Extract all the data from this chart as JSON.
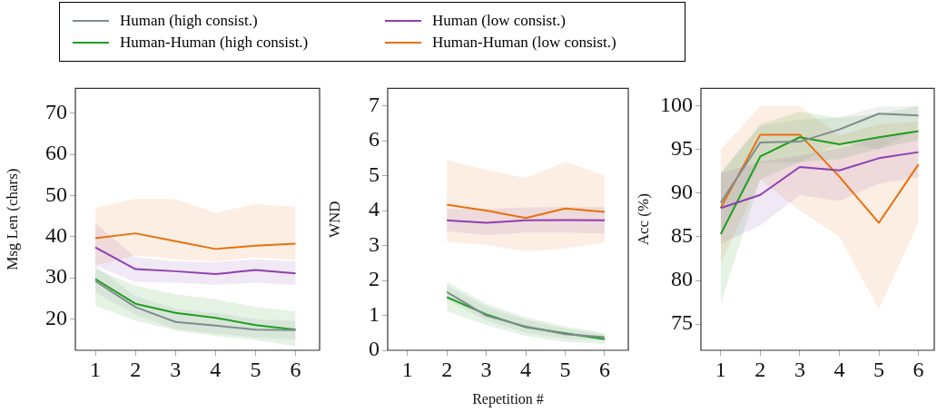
{
  "chart_data": [
    {
      "type": "line",
      "ylabel": "Msg Len (chars)",
      "x": [
        1,
        2,
        3,
        4,
        5,
        6
      ],
      "xlim": [
        0.5,
        6.6
      ],
      "xticks": [
        1,
        2,
        3,
        4,
        5,
        6
      ],
      "ylim": [
        12.4,
        76
      ],
      "yticks": [
        20,
        30,
        40,
        50,
        60,
        70
      ],
      "legend": "top",
      "grid": false,
      "marker": "none",
      "line_style": "solid",
      "series": [
        {
          "name": "Human (high consist.)",
          "color": "#7f8c8d",
          "values": [
            29.2,
            22.9,
            19.3,
            18.4,
            17.4,
            17.3
          ],
          "lower": [
            26.5,
            21,
            17.5,
            16.5,
            15.5,
            15
          ],
          "upper": [
            33,
            25.5,
            22.5,
            21.5,
            20,
            19.5
          ]
        },
        {
          "name": "Human (low consist.)",
          "color": "#8e3fb0",
          "values": [
            37.4,
            32.1,
            31.6,
            30.9,
            31.9,
            31.1
          ],
          "lower": [
            33,
            29,
            28.8,
            28.3,
            28.8,
            28.2
          ],
          "upper": [
            43.3,
            35,
            34,
            33.8,
            34.5,
            34
          ]
        },
        {
          "name": "Human-Human (high consist.)",
          "color": "#1f9e1f",
          "values": [
            29.7,
            23.7,
            21.5,
            20.3,
            18.5,
            17.4
          ],
          "lower": [
            23.2,
            19.6,
            17.2,
            15.9,
            14.9,
            13.4
          ],
          "upper": [
            32.2,
            28.1,
            26,
            24.8,
            22.9,
            21.8
          ]
        },
        {
          "name": "Human-Human (low consist.)",
          "color": "#e8700d",
          "values": [
            39.6,
            40.8,
            38.9,
            37,
            37.8,
            38.3
          ],
          "lower": [
            33,
            35.5,
            34.5,
            34,
            35,
            34.3
          ],
          "upper": [
            47,
            49.2,
            49.1,
            45.8,
            47.9,
            47.3
          ]
        }
      ]
    },
    {
      "type": "line",
      "ylabel": "WND",
      "xlabel": "Repetition #",
      "x": [
        2,
        3,
        4,
        5,
        6
      ],
      "xlim": [
        0.5,
        6.6
      ],
      "xticks": [
        1,
        2,
        3,
        4,
        5,
        6
      ],
      "ylim": [
        0,
        7.5
      ],
      "yticks": [
        0,
        1,
        2,
        3,
        4,
        5,
        6,
        7
      ],
      "grid": false,
      "marker": "none",
      "line_style": "solid",
      "series": [
        {
          "color": "#7f8c8d",
          "values": [
            1.67,
            0.99,
            0.68,
            0.46,
            0.38
          ],
          "lower": [
            1.45,
            0.85,
            0.5,
            0.33,
            0.28
          ],
          "upper": [
            1.85,
            1.25,
            0.88,
            0.62,
            0.45
          ]
        },
        {
          "color": "#8e3fb0",
          "values": [
            3.72,
            3.65,
            3.72,
            3.73,
            3.72
          ],
          "lower": [
            3.41,
            3.3,
            3.37,
            3.37,
            3.34
          ],
          "upper": [
            4.05,
            4.05,
            4.09,
            4.1,
            4.1
          ]
        },
        {
          "color": "#1f9e1f",
          "values": [
            1.52,
            1.03,
            0.66,
            0.49,
            0.32
          ],
          "lower": [
            1.13,
            0.72,
            0.41,
            0.24,
            0.18
          ],
          "upper": [
            1.96,
            1.34,
            0.94,
            0.68,
            0.5
          ]
        },
        {
          "color": "#e8700d",
          "values": [
            4.17,
            4,
            3.79,
            4.06,
            3.96
          ],
          "lower": [
            3.1,
            3.02,
            2.83,
            2.92,
            3.08
          ],
          "upper": [
            5.44,
            5.17,
            4.93,
            5.4,
            5
          ]
        }
      ]
    },
    {
      "type": "line",
      "ylabel": "Acc (%)",
      "x": [
        1,
        2,
        3,
        4,
        5,
        6
      ],
      "xlim": [
        0.5,
        6.4
      ],
      "xticks": [
        1,
        2,
        3,
        4,
        5,
        6
      ],
      "ylim": [
        72,
        102
      ],
      "yticks": [
        75,
        80,
        85,
        90,
        95,
        100
      ],
      "grid": false,
      "marker": "none",
      "line_style": "solid",
      "series": [
        {
          "color": "#7f8c8d",
          "values": [
            88.9,
            95.8,
            95.9,
            97.3,
            99.1,
            98.9
          ],
          "lower": [
            85.5,
            93.5,
            93.5,
            95.8,
            95,
            97.5
          ],
          "upper": [
            92.3,
            97.7,
            98.4,
            98.7,
            99.9,
            100
          ]
        },
        {
          "color": "#8e3fb0",
          "values": [
            88.3,
            89.8,
            93,
            92.6,
            94,
            94.7
          ],
          "lower": [
            84.2,
            86.3,
            89.8,
            89.1,
            91.1,
            91.8
          ],
          "upper": [
            92.3,
            93.6,
            94.3,
            95.1,
            96.4,
            97.1
          ]
        },
        {
          "color": "#1f9e1f",
          "values": [
            85.3,
            94.2,
            96.4,
            95.6,
            96.4,
            97.1
          ],
          "lower": [
            77.3,
            91.6,
            93.6,
            93.9,
            95.1,
            96.1
          ],
          "upper": [
            92.3,
            97.9,
            99.3,
            98.6,
            99.1,
            100
          ]
        },
        {
          "color": "#e8700d",
          "values": [
            88.3,
            96.7,
            96.7,
            91.9,
            86.6,
            93.3
          ],
          "lower": [
            82,
            91.6,
            88,
            85,
            76.7,
            86.6
          ],
          "upper": [
            95,
            100,
            100,
            96.6,
            97.9,
            98.2
          ]
        }
      ]
    }
  ]
}
